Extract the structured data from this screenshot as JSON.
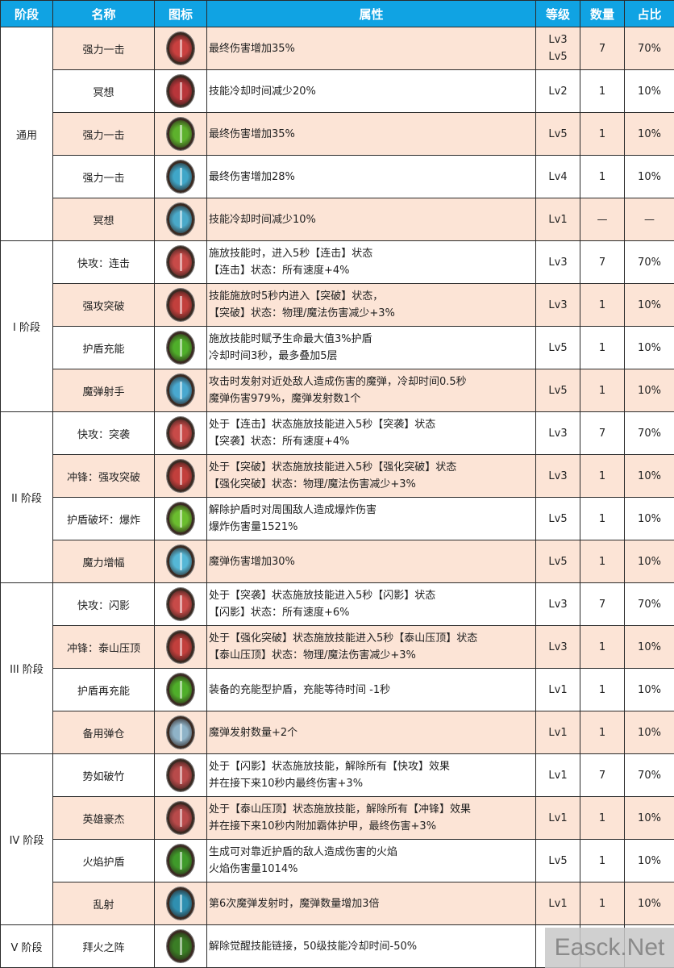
{
  "headers": {
    "stage": "阶段",
    "name": "名称",
    "icon": "图标",
    "attr": "属性",
    "level": "等级",
    "count": "数量",
    "ratio": "占比"
  },
  "stages": [
    {
      "label": "通用",
      "rows": 5
    },
    {
      "label": "I 阶段",
      "rows": 4
    },
    {
      "label": "II 阶段",
      "rows": 4
    },
    {
      "label": "III 阶段",
      "rows": 4
    },
    {
      "label": "IV 阶段",
      "rows": 4
    },
    {
      "label": "V 阶段",
      "rows": 1
    }
  ],
  "rows": [
    {
      "name": "强力一击",
      "icon": "sword-red-icon",
      "icon_color": "#c9403f",
      "attr": "最终伤害增加35%",
      "level": "Lv3\nLv5",
      "count": "7",
      "ratio": "70%"
    },
    {
      "name": "冥想",
      "icon": "meditate-red-icon",
      "icon_color": "#b8353a",
      "attr": "技能冷却时间减少20%",
      "level": "Lv2",
      "count": "1",
      "ratio": "10%"
    },
    {
      "name": "强力一击",
      "icon": "sword-green-icon",
      "icon_color": "#5db12c",
      "attr": "最终伤害增加35%",
      "level": "Lv5",
      "count": "1",
      "ratio": "10%"
    },
    {
      "name": "强力一击",
      "icon": "sword-blue-icon",
      "icon_color": "#3fa6c8",
      "attr": "最终伤害增加28%",
      "level": "Lv4",
      "count": "1",
      "ratio": "10%"
    },
    {
      "name": "冥想",
      "icon": "meditate-blue-icon",
      "icon_color": "#4aa9c9",
      "attr": "技能冷却时间减少10%",
      "level": "Lv1",
      "count": "—",
      "ratio": "—"
    },
    {
      "name": "快攻：连击",
      "icon": "fist-red-icon",
      "icon_color": "#c84a48",
      "attr": "施放技能时，进入5秒【连击】状态\n【连击】状态：所有速度+4%",
      "level": "Lv3",
      "count": "7",
      "ratio": "70%"
    },
    {
      "name": "强攻突破",
      "icon": "burst-red-icon",
      "icon_color": "#c23f3c",
      "attr": "技能施放时5秒内进入【突破】状态，\n【突破】状态：物理/魔法伤害减少+3%",
      "level": "Lv3",
      "count": "1",
      "ratio": "10%"
    },
    {
      "name": "护盾充能",
      "icon": "shield-green-icon",
      "icon_color": "#4fae2a",
      "attr": "施放技能时赋予生命最大值3%护盾\n冷却时间3秒，最多叠加5层",
      "level": "Lv5",
      "count": "1",
      "ratio": "10%"
    },
    {
      "name": "魔弹射手",
      "icon": "bullet-blue-icon",
      "icon_color": "#49a8cf",
      "attr": "攻击时发射对近处敌人造成伤害的魔弹，冷却时间0.5秒\n魔弹伤害979%，魔弹发射数1个",
      "level": "Lv5",
      "count": "1",
      "ratio": "10%"
    },
    {
      "name": "快攻：突袭",
      "icon": "raid-red-icon",
      "icon_color": "#c84a48",
      "attr": "处于【连击】状态施放技能进入5秒【突袭】状态\n【突袭】状态：所有速度+4%",
      "level": "Lv3",
      "count": "7",
      "ratio": "70%"
    },
    {
      "name": "冲锋：强攻突破",
      "icon": "burst-red-icon",
      "icon_color": "#c23f3c",
      "attr": "处于【突破】状态施放技能进入5秒【强化突破】状态\n【强化突破】状态：物理/魔法伤害减少+3%",
      "level": "Lv3",
      "count": "1",
      "ratio": "10%"
    },
    {
      "name": "护盾破坏：爆炸",
      "icon": "explosion-green-icon",
      "icon_color": "#6bbd2f",
      "attr": "解除护盾时对周围敌人造成爆炸伤害\n爆炸伤害量1521%",
      "level": "Lv5",
      "count": "1",
      "ratio": "10%"
    },
    {
      "name": "魔力增幅",
      "icon": "gem-blue-icon",
      "icon_color": "#55b7d6",
      "attr": "魔弹伤害增加30%",
      "level": "Lv5",
      "count": "1",
      "ratio": "10%"
    },
    {
      "name": "快攻：闪影",
      "icon": "shadow-red-icon",
      "icon_color": "#c84a48",
      "attr": "处于【突袭】状态施放技能进入5秒【闪影】状态\n【闪影】状态：所有速度+6%",
      "level": "Lv3",
      "count": "7",
      "ratio": "70%"
    },
    {
      "name": "冲锋：泰山压顶",
      "icon": "crush-red-icon",
      "icon_color": "#c23f3c",
      "attr": "处于【强化突破】状态施放技能进入5秒【泰山压顶】状态\n【泰山压顶】状态：物理/魔法伤害减少+3%",
      "level": "Lv3",
      "count": "1",
      "ratio": "10%"
    },
    {
      "name": "护盾再充能",
      "icon": "lightning-green-icon",
      "icon_color": "#4fae2a",
      "attr": "装备的充能型护盾，充能等待时间 -1秒",
      "level": "Lv1",
      "count": "1",
      "ratio": "10%"
    },
    {
      "name": "备用弹仓",
      "icon": "magazine-icon",
      "icon_color": "#8fb3c8",
      "attr": "魔弹发射数量+2个",
      "level": "Lv1",
      "count": "1",
      "ratio": "10%"
    },
    {
      "name": "势如破竹",
      "icon": "flurry-red-icon",
      "icon_color": "#b84a4a",
      "attr": "处于【闪影】状态施放技能，解除所有【快攻】效果\n并在接下来10秒内最终伤害+3%",
      "level": "Lv1",
      "count": "7",
      "ratio": "70%"
    },
    {
      "name": "英雄豪杰",
      "icon": "hero-red-icon",
      "icon_color": "#b84a4a",
      "attr": "处于【泰山压顶】状态施放技能，解除所有【冲锋】效果\n并在接下来10秒内附加霸体护甲，最终伤害+3%",
      "level": "Lv1",
      "count": "1",
      "ratio": "10%"
    },
    {
      "name": "火焰护盾",
      "icon": "flame-green-icon",
      "icon_color": "#3f9a2a",
      "attr": "生成可对靠近护盾的敌人造成伤害的火焰\n火焰伤害量1014%",
      "level": "Lv5",
      "count": "1",
      "ratio": "10%"
    },
    {
      "name": "乱射",
      "icon": "barrage-blue-icon",
      "icon_color": "#2f8fb0",
      "attr": "第6次魔弹发射时，魔弹数量增加3倍",
      "level": "Lv1",
      "count": "1",
      "ratio": "10%"
    },
    {
      "name": "拜火之阵",
      "icon": "fire-array-green-icon",
      "icon_color": "#3a7d25",
      "attr": "解除觉醒技能链接，50级技能冷却时间-50%",
      "level": "",
      "count": "",
      "ratio": ""
    }
  ],
  "watermark": "Easck.Net",
  "colors": {
    "header": "#10a3e3",
    "peach": "#fce4d6"
  }
}
